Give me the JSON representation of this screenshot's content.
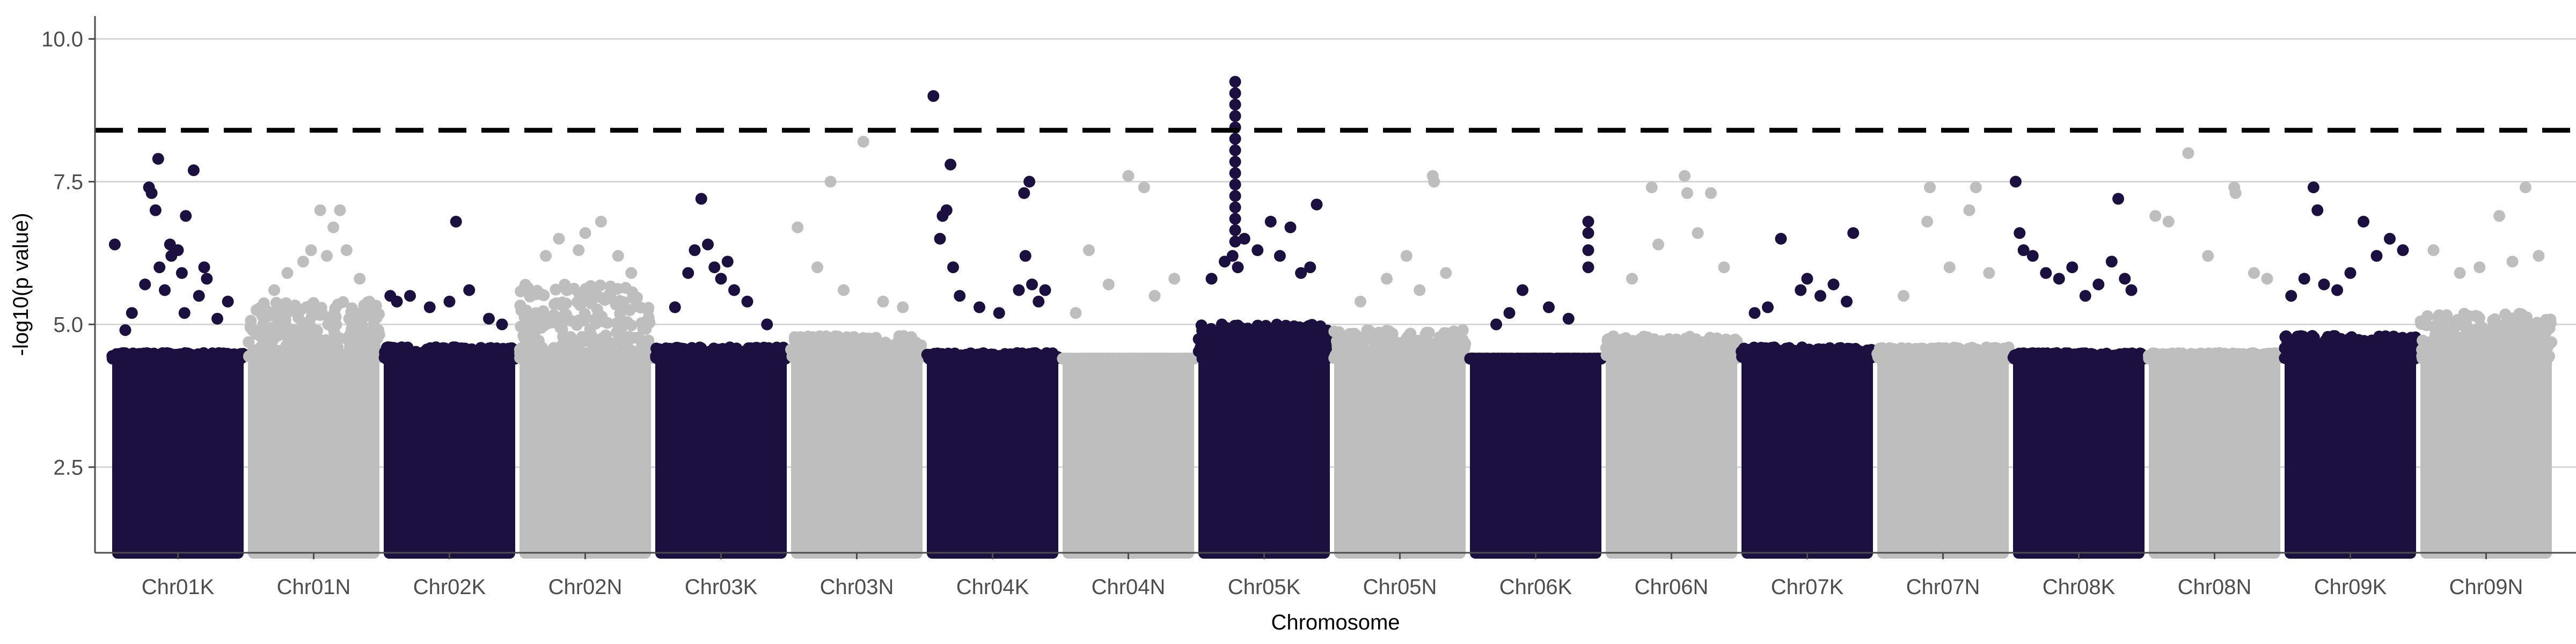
{
  "chart_data": {
    "type": "scatter",
    "subtype": "manhattan",
    "title": "",
    "xlabel": "Chromosome",
    "ylabel": "-log10(p value)",
    "ylim": [
      1.0,
      10.4
    ],
    "yticks": [
      2.5,
      5.0,
      7.5,
      10.0
    ],
    "grid": "horizontal major lines",
    "legend": "none",
    "colors": {
      "odd": "#1c1040",
      "even": "#bebebe",
      "threshold": "#000000",
      "grid": "#d6d6d6",
      "axis": "#4d4d4d"
    },
    "threshold": {
      "y": 8.4,
      "style": "dashed"
    },
    "bulk_range": [
      1.0,
      4.4
    ],
    "categories": [
      "Chr01K",
      "Chr01N",
      "Chr02K",
      "Chr02N",
      "Chr03K",
      "Chr03N",
      "Chr04K",
      "Chr04N",
      "Chr05K",
      "Chr05N",
      "Chr06K",
      "Chr06N",
      "Chr07K",
      "Chr07N",
      "Chr08K",
      "Chr08N",
      "Chr09K",
      "Chr09N"
    ],
    "chromosomes": [
      {
        "name": "Chr01K",
        "color": "#1c1040",
        "bulk_top": 4.5,
        "points": [
          [
            0.02,
            6.4
          ],
          [
            0.25,
            5.7
          ],
          [
            0.28,
            7.4
          ],
          [
            0.3,
            7.3
          ],
          [
            0.33,
            7.0
          ],
          [
            0.36,
            6.0
          ],
          [
            0.4,
            5.6
          ],
          [
            0.44,
            6.4
          ],
          [
            0.45,
            6.2
          ],
          [
            0.5,
            6.3
          ],
          [
            0.53,
            5.9
          ],
          [
            0.56,
            6.9
          ],
          [
            0.62,
            7.7
          ],
          [
            0.66,
            5.5
          ],
          [
            0.7,
            6.0
          ],
          [
            0.72,
            5.8
          ],
          [
            0.35,
            7.9
          ],
          [
            0.15,
            5.2
          ],
          [
            0.8,
            5.1
          ],
          [
            0.88,
            5.4
          ],
          [
            0.1,
            4.9
          ],
          [
            0.55,
            5.2
          ]
        ]
      },
      {
        "name": "Chr01N",
        "color": "#bebebe",
        "bulk_top": 5.4,
        "points": [
          [
            0.55,
            7.0
          ],
          [
            0.65,
            6.7
          ],
          [
            0.7,
            7.0
          ],
          [
            0.42,
            6.1
          ],
          [
            0.48,
            6.3
          ],
          [
            0.3,
            5.9
          ],
          [
            0.75,
            6.3
          ],
          [
            0.85,
            5.8
          ],
          [
            0.2,
            5.6
          ],
          [
            0.6,
            6.2
          ]
        ]
      },
      {
        "name": "Chr02K",
        "color": "#1c1040",
        "bulk_top": 4.6,
        "points": [
          [
            0.55,
            6.8
          ],
          [
            0.05,
            5.5
          ],
          [
            0.1,
            5.4
          ],
          [
            0.2,
            5.5
          ],
          [
            0.35,
            5.3
          ],
          [
            0.5,
            5.4
          ],
          [
            0.65,
            5.6
          ],
          [
            0.8,
            5.1
          ],
          [
            0.9,
            5.0
          ]
        ]
      },
      {
        "name": "Chr02N",
        "color": "#bebebe",
        "bulk_top": 5.7,
        "points": [
          [
            0.3,
            6.5
          ],
          [
            0.5,
            6.6
          ],
          [
            0.62,
            6.8
          ],
          [
            0.45,
            6.3
          ],
          [
            0.2,
            6.2
          ],
          [
            0.75,
            6.2
          ],
          [
            0.85,
            5.9
          ]
        ]
      },
      {
        "name": "Chr03K",
        "color": "#1c1040",
        "bulk_top": 4.6,
        "points": [
          [
            0.35,
            7.2
          ],
          [
            0.4,
            6.4
          ],
          [
            0.45,
            6.0
          ],
          [
            0.3,
            6.3
          ],
          [
            0.5,
            5.8
          ],
          [
            0.55,
            6.1
          ],
          [
            0.25,
            5.9
          ],
          [
            0.6,
            5.6
          ],
          [
            0.7,
            5.4
          ],
          [
            0.15,
            5.3
          ],
          [
            0.85,
            5.0
          ]
        ]
      },
      {
        "name": "Chr03N",
        "color": "#bebebe",
        "bulk_top": 4.8,
        "points": [
          [
            0.05,
            6.7
          ],
          [
            0.3,
            7.5
          ],
          [
            0.55,
            8.2
          ],
          [
            0.2,
            6.0
          ],
          [
            0.4,
            5.6
          ],
          [
            0.7,
            5.4
          ],
          [
            0.85,
            5.3
          ]
        ]
      },
      {
        "name": "Chr04K",
        "color": "#1c1040",
        "bulk_top": 4.5,
        "points": [
          [
            0.05,
            9.0
          ],
          [
            0.18,
            7.8
          ],
          [
            0.12,
            6.9
          ],
          [
            0.15,
            7.0
          ],
          [
            0.1,
            6.5
          ],
          [
            0.2,
            6.0
          ],
          [
            0.78,
            7.5
          ],
          [
            0.74,
            7.3
          ],
          [
            0.75,
            6.2
          ],
          [
            0.8,
            5.7
          ],
          [
            0.7,
            5.6
          ],
          [
            0.25,
            5.5
          ],
          [
            0.4,
            5.3
          ],
          [
            0.55,
            5.2
          ],
          [
            0.85,
            5.4
          ],
          [
            0.9,
            5.6
          ]
        ]
      },
      {
        "name": "Chr04N",
        "color": "#bebebe",
        "bulk_top": 4.4,
        "points": [
          [
            0.2,
            6.3
          ],
          [
            0.5,
            7.6
          ],
          [
            0.62,
            7.4
          ],
          [
            0.35,
            5.7
          ],
          [
            0.7,
            5.5
          ],
          [
            0.85,
            5.8
          ],
          [
            0.1,
            5.2
          ]
        ]
      },
      {
        "name": "Chr05K",
        "color": "#1c1040",
        "bulk_top": 5.0,
        "points": [
          [
            0.28,
            9.25
          ],
          [
            0.28,
            9.05
          ],
          [
            0.28,
            8.85
          ],
          [
            0.28,
            8.65
          ],
          [
            0.28,
            8.45
          ],
          [
            0.28,
            8.25
          ],
          [
            0.28,
            8.05
          ],
          [
            0.28,
            7.85
          ],
          [
            0.28,
            7.65
          ],
          [
            0.28,
            7.45
          ],
          [
            0.28,
            7.25
          ],
          [
            0.28,
            7.05
          ],
          [
            0.28,
            6.85
          ],
          [
            0.28,
            6.65
          ],
          [
            0.28,
            6.45
          ],
          [
            0.26,
            6.2
          ],
          [
            0.3,
            6.0
          ],
          [
            0.35,
            6.5
          ],
          [
            0.2,
            6.1
          ],
          [
            0.1,
            5.8
          ],
          [
            0.45,
            6.3
          ],
          [
            0.55,
            6.8
          ],
          [
            0.62,
            6.2
          ],
          [
            0.7,
            6.7
          ],
          [
            0.78,
            5.9
          ],
          [
            0.9,
            7.1
          ],
          [
            0.85,
            6.0
          ]
        ]
      },
      {
        "name": "Chr05N",
        "color": "#bebebe",
        "bulk_top": 4.9,
        "points": [
          [
            0.75,
            7.6
          ],
          [
            0.76,
            7.5
          ],
          [
            0.4,
            5.8
          ],
          [
            0.55,
            6.2
          ],
          [
            0.65,
            5.6
          ],
          [
            0.85,
            5.9
          ],
          [
            0.2,
            5.4
          ]
        ]
      },
      {
        "name": "Chr06K",
        "color": "#1c1040",
        "bulk_top": 4.4,
        "points": [
          [
            0.9,
            6.8
          ],
          [
            0.9,
            6.6
          ],
          [
            0.9,
            6.3
          ],
          [
            0.9,
            6.0
          ],
          [
            0.4,
            5.6
          ],
          [
            0.3,
            5.2
          ],
          [
            0.6,
            5.3
          ],
          [
            0.2,
            5.0
          ],
          [
            0.75,
            5.1
          ]
        ]
      },
      {
        "name": "Chr06N",
        "color": "#bebebe",
        "bulk_top": 4.8,
        "points": [
          [
            0.35,
            7.4
          ],
          [
            0.6,
            7.6
          ],
          [
            0.62,
            7.3
          ],
          [
            0.8,
            7.3
          ],
          [
            0.4,
            6.4
          ],
          [
            0.7,
            6.6
          ],
          [
            0.2,
            5.8
          ],
          [
            0.9,
            6.0
          ]
        ]
      },
      {
        "name": "Chr07K",
        "color": "#1c1040",
        "bulk_top": 4.6,
        "points": [
          [
            0.3,
            6.5
          ],
          [
            0.85,
            6.6
          ],
          [
            0.5,
            5.8
          ],
          [
            0.45,
            5.6
          ],
          [
            0.6,
            5.5
          ],
          [
            0.7,
            5.7
          ],
          [
            0.2,
            5.3
          ],
          [
            0.1,
            5.2
          ],
          [
            0.8,
            5.4
          ]
        ]
      },
      {
        "name": "Chr07N",
        "color": "#bebebe",
        "bulk_top": 4.6,
        "points": [
          [
            0.4,
            7.4
          ],
          [
            0.75,
            7.4
          ],
          [
            0.38,
            6.8
          ],
          [
            0.7,
            7.0
          ],
          [
            0.55,
            6.0
          ],
          [
            0.85,
            5.9
          ],
          [
            0.2,
            5.5
          ]
        ]
      },
      {
        "name": "Chr08K",
        "color": "#1c1040",
        "bulk_top": 4.5,
        "points": [
          [
            0.02,
            7.5
          ],
          [
            0.8,
            7.2
          ],
          [
            0.05,
            6.6
          ],
          [
            0.08,
            6.3
          ],
          [
            0.15,
            6.2
          ],
          [
            0.25,
            5.9
          ],
          [
            0.35,
            5.8
          ],
          [
            0.45,
            6.0
          ],
          [
            0.55,
            5.5
          ],
          [
            0.65,
            5.7
          ],
          [
            0.75,
            6.1
          ],
          [
            0.85,
            5.8
          ],
          [
            0.9,
            5.6
          ]
        ]
      },
      {
        "name": "Chr08N",
        "color": "#bebebe",
        "bulk_top": 4.5,
        "points": [
          [
            0.05,
            6.9
          ],
          [
            0.15,
            6.8
          ],
          [
            0.3,
            8.0
          ],
          [
            0.65,
            7.4
          ],
          [
            0.66,
            7.3
          ],
          [
            0.45,
            6.2
          ],
          [
            0.8,
            5.9
          ],
          [
            0.9,
            5.8
          ]
        ]
      },
      {
        "name": "Chr09K",
        "color": "#1c1040",
        "bulk_top": 4.8,
        "points": [
          [
            0.05,
            5.5
          ],
          [
            0.22,
            7.4
          ],
          [
            0.25,
            7.0
          ],
          [
            0.3,
            5.7
          ],
          [
            0.4,
            5.6
          ],
          [
            0.5,
            5.9
          ],
          [
            0.6,
            6.8
          ],
          [
            0.7,
            6.2
          ],
          [
            0.8,
            6.5
          ],
          [
            0.9,
            6.3
          ],
          [
            0.15,
            5.8
          ]
        ]
      },
      {
        "name": "Chr09N",
        "color": "#bebebe",
        "bulk_top": 5.2,
        "points": [
          [
            0.1,
            6.3
          ],
          [
            0.6,
            6.9
          ],
          [
            0.8,
            7.4
          ],
          [
            0.7,
            6.1
          ],
          [
            0.45,
            6.0
          ],
          [
            0.3,
            5.9
          ],
          [
            0.9,
            6.2
          ]
        ]
      }
    ]
  }
}
